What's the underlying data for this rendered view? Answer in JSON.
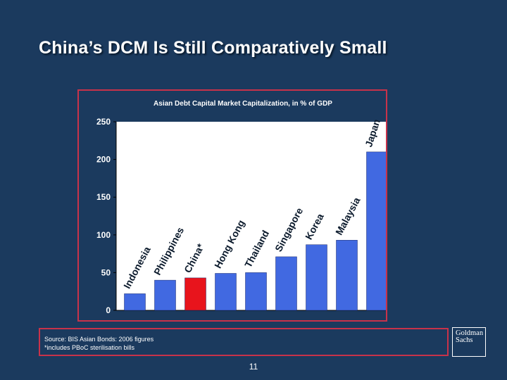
{
  "slide_title": "China’s DCM Is Still Comparatively Small",
  "chart_data": {
    "type": "bar",
    "title": "Asian Debt Capital Market Capitalization, in % of GDP",
    "inner_label": "% of GDP",
    "categories": [
      "Indonesia",
      "Philippines",
      "China*",
      "Hong Kong",
      "Thailand",
      "Singapore",
      "Korea",
      "Malaysia",
      "Japan"
    ],
    "values": [
      22,
      40,
      43,
      49,
      50,
      71,
      87,
      93,
      210
    ],
    "ylim": [
      0,
      250
    ],
    "yticks": [
      0,
      50,
      100,
      150,
      200,
      250
    ],
    "grid": false,
    "colors": {
      "bar": "#4169e1",
      "highlight": "#e8141c",
      "highlight_category": "China*",
      "plot_background": "#ffffff"
    }
  },
  "source": {
    "line1": "Source:  BIS Asian Bonds: 2006 figures",
    "line2": "*includes PBoC sterilisation bills"
  },
  "page_number": "11",
  "logo": {
    "line1": "Goldman",
    "line2": "Sachs"
  }
}
